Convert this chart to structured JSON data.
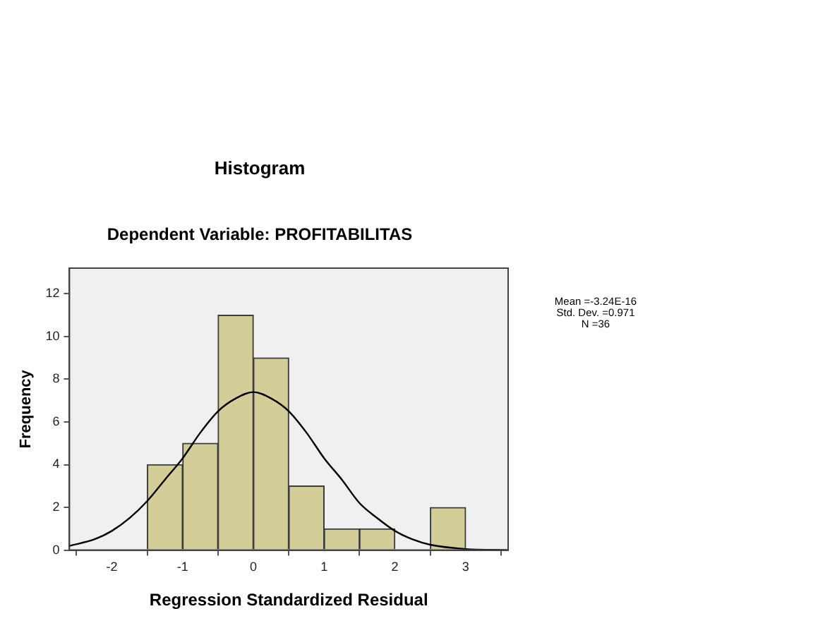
{
  "chart_data": {
    "type": "histogram",
    "title": "Histogram",
    "subtitle": "Dependent Variable: PROFITABILITAS",
    "xlabel": "Regression Standardized Residual",
    "ylabel": "Frequency",
    "bins": [
      -1.5,
      -1,
      -0.5,
      0,
      0.5,
      1,
      1.5,
      2,
      2.5,
      3
    ],
    "values": [
      4,
      5,
      11,
      9,
      3,
      1,
      1,
      0,
      2
    ],
    "color": "#d3ce97",
    "series": [
      {
        "type": "line",
        "color": "#000000",
        "x": [
          -2.6,
          -2.25,
          -2,
          -1.75,
          -1.5,
          -1.25,
          -1,
          -0.75,
          -0.5,
          -0.25,
          0,
          0.25,
          0.5,
          0.75,
          1,
          1.25,
          1.5,
          1.75,
          2,
          2.25,
          2.5,
          3,
          3.6
        ],
        "values": [
          0.2,
          0.5,
          0.9,
          1.5,
          2.3,
          3.3,
          4.3,
          5.5,
          6.5,
          7.1,
          7.4,
          7.1,
          6.5,
          5.5,
          4.3,
          3.3,
          2.2,
          1.5,
          0.9,
          0.5,
          0.25,
          0.05,
          0
        ]
      }
    ],
    "xlim": [
      -2.6,
      3.6
    ],
    "ylim": [
      0,
      13.2
    ],
    "xticks": [
      -2,
      -1,
      0,
      1,
      2,
      3
    ],
    "yticks": [
      0,
      2,
      4,
      6,
      8,
      10,
      12
    ],
    "grid": false,
    "legend": false,
    "annotations": [
      "Mean =-3.24E-16",
      "Std. Dev. =0.971",
      "N =36"
    ]
  }
}
